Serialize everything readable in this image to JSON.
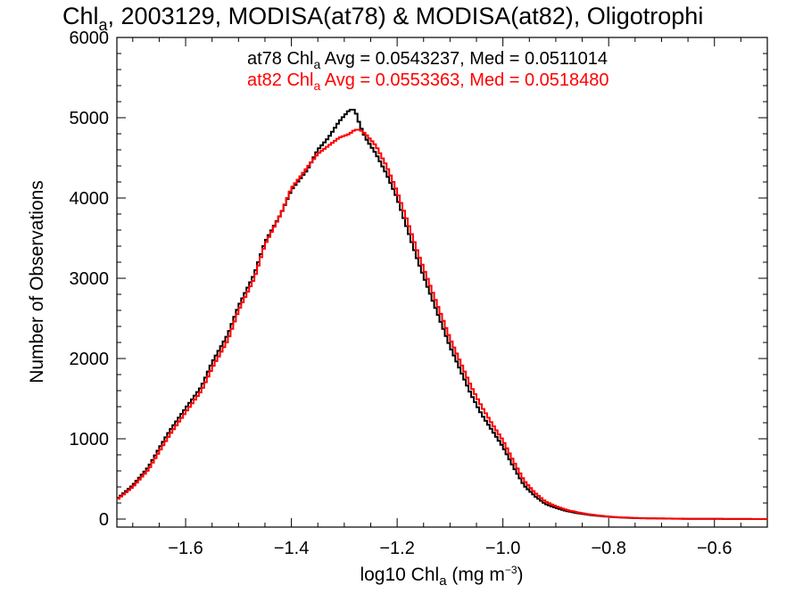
{
  "chart_data": {
    "type": "line",
    "title": {
      "prefix": "Chl",
      "sub": "a",
      "rest": ", 2003129, MODISA(at78) & MODISA(at82), Oligotrophi"
    },
    "xlabel": {
      "prefix": "log10 Chl",
      "sub": "a",
      "mid": " (mg m",
      "sup": "−3",
      "suffix": ")"
    },
    "ylabel": "Number of Observations",
    "xlim": [
      -1.73,
      -0.5
    ],
    "ylim": [
      -100,
      6000
    ],
    "xticks": [
      -1.6,
      -1.4,
      -1.2,
      -1.0,
      -0.8,
      -0.6
    ],
    "xtick_labels": [
      "−1.6",
      "−1.4",
      "−1.2",
      "−1.0",
      "−0.8",
      "−0.6"
    ],
    "yticks": [
      0,
      1000,
      2000,
      3000,
      4000,
      5000,
      6000
    ],
    "ytick_labels": [
      "0",
      "1000",
      "2000",
      "3000",
      "4000",
      "5000",
      "6000"
    ],
    "series": [
      {
        "name": "at78",
        "color": "#000000",
        "legend": {
          "prefix": "at78 Chl",
          "sub": "a",
          "rest": " Avg = 0.0543237, Med = 0.0511014"
        },
        "x": [
          -1.73,
          -1.7,
          -1.67,
          -1.65,
          -1.63,
          -1.6,
          -1.57,
          -1.55,
          -1.52,
          -1.5,
          -1.47,
          -1.45,
          -1.42,
          -1.4,
          -1.37,
          -1.35,
          -1.33,
          -1.31,
          -1.29,
          -1.28,
          -1.27,
          -1.26,
          -1.24,
          -1.22,
          -1.2,
          -1.18,
          -1.16,
          -1.14,
          -1.12,
          -1.1,
          -1.08,
          -1.06,
          -1.04,
          -1.02,
          -1.0,
          -0.98,
          -0.96,
          -0.94,
          -0.92,
          -0.9,
          -0.88,
          -0.86,
          -0.84,
          -0.82,
          -0.8,
          -0.78,
          -0.75,
          -0.72,
          -0.68,
          -0.64,
          -0.6,
          -0.55,
          -0.5
        ],
        "y": [
          250,
          420,
          650,
          880,
          1100,
          1380,
          1650,
          1950,
          2300,
          2650,
          3050,
          3450,
          3800,
          4100,
          4350,
          4600,
          4750,
          4950,
          5100,
          5100,
          4900,
          4750,
          4550,
          4300,
          4000,
          3600,
          3200,
          2850,
          2500,
          2150,
          1850,
          1550,
          1300,
          1100,
          900,
          650,
          420,
          290,
          190,
          140,
          100,
          75,
          55,
          40,
          28,
          20,
          12,
          8,
          5,
          3,
          2,
          1,
          0
        ]
      },
      {
        "name": "at82",
        "color": "#ff0000",
        "legend": {
          "prefix": "at82 Chl",
          "sub": "a",
          "rest": " Avg = 0.0553363, Med = 0.0518480"
        },
        "x": [
          -1.73,
          -1.7,
          -1.67,
          -1.65,
          -1.63,
          -1.6,
          -1.57,
          -1.55,
          -1.52,
          -1.5,
          -1.47,
          -1.45,
          -1.42,
          -1.4,
          -1.37,
          -1.35,
          -1.33,
          -1.31,
          -1.29,
          -1.28,
          -1.27,
          -1.26,
          -1.24,
          -1.22,
          -1.2,
          -1.18,
          -1.16,
          -1.14,
          -1.12,
          -1.1,
          -1.08,
          -1.06,
          -1.04,
          -1.02,
          -1.0,
          -0.98,
          -0.96,
          -0.94,
          -0.92,
          -0.9,
          -0.88,
          -0.86,
          -0.84,
          -0.82,
          -0.8,
          -0.78,
          -0.75,
          -0.72,
          -0.68,
          -0.64,
          -0.6,
          -0.55,
          -0.5
        ],
        "y": [
          240,
          400,
          620,
          840,
          1050,
          1330,
          1600,
          1880,
          2230,
          2600,
          3000,
          3420,
          3800,
          4120,
          4380,
          4550,
          4650,
          4750,
          4800,
          4850,
          4850,
          4800,
          4650,
          4400,
          4080,
          3700,
          3300,
          2950,
          2600,
          2250,
          1950,
          1650,
          1400,
          1180,
          980,
          720,
          480,
          330,
          220,
          160,
          115,
          85,
          62,
          45,
          32,
          22,
          14,
          9,
          6,
          3,
          2,
          1,
          0
        ]
      }
    ]
  }
}
